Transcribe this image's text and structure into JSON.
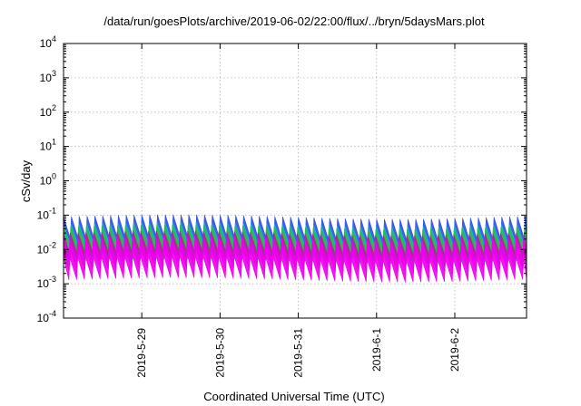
{
  "chart_data": {
    "type": "area",
    "title": "/data/run/goesPlots/archive/2019-06-02/22:00/flux/../bryn/5daysMars.plot",
    "xlabel": "Coordinated Universal Time (UTC)",
    "ylabel": "cSv/day",
    "y_scale": "log",
    "ylim": [
      0.0001,
      10000
    ],
    "y_ticks": [
      {
        "value": 0.0001,
        "base": "10",
        "exp": "-4"
      },
      {
        "value": 0.001,
        "base": "10",
        "exp": "-3"
      },
      {
        "value": 0.01,
        "base": "10",
        "exp": "-2"
      },
      {
        "value": 0.1,
        "base": "10",
        "exp": "-1"
      },
      {
        "value": 1,
        "base": "10",
        "exp": "0"
      },
      {
        "value": 10,
        "base": "10",
        "exp": "1"
      },
      {
        "value": 100,
        "base": "10",
        "exp": "2"
      },
      {
        "value": 1000,
        "base": "10",
        "exp": "3"
      },
      {
        "value": 10000,
        "base": "10",
        "exp": "4"
      }
    ],
    "xlim": [
      "2019-05-28 00:00",
      "2019-06-02 22:00"
    ],
    "x_ticks": [
      {
        "value": "2019-05-29 00:00",
        "label": "2019-5-29"
      },
      {
        "value": "2019-05-30 00:00",
        "label": "2019-5-30"
      },
      {
        "value": "2019-05-31 00:00",
        "label": "2019-5-31"
      },
      {
        "value": "2019-06-01 00:00",
        "label": "2019-6-1"
      },
      {
        "value": "2019-06-02 00:00",
        "label": "2019-6-2"
      }
    ],
    "grid": true,
    "legend": "none",
    "oscillation_period_hours": 2.4,
    "series": [
      {
        "color": "#3050e8",
        "values_peak": 0.09,
        "values_trough": 0.0055
      },
      {
        "color": "#20b0c8",
        "values_peak": 0.055,
        "values_trough": 0.0045
      },
      {
        "color": "#28c040",
        "values_peak": 0.045,
        "values_trough": 0.004
      },
      {
        "color": "#b020a0",
        "values_peak": 0.03,
        "values_trough": 0.0025
      },
      {
        "color": "#f000f0",
        "values_peak": 0.022,
        "values_trough": 0.0013
      }
    ]
  }
}
